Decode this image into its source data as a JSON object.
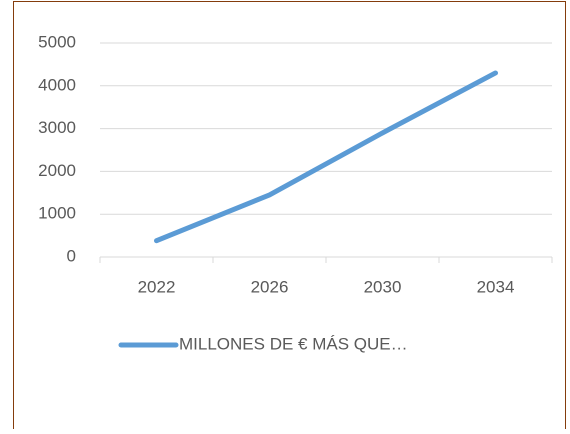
{
  "chart_data": {
    "type": "line",
    "categories": [
      "2022",
      "2026",
      "2030",
      "2034"
    ],
    "series": [
      {
        "name": "MILLONES DE € MÁS QUE…",
        "color": "#5b9bd5",
        "values": [
          380,
          1450,
          2900,
          4300
        ]
      }
    ],
    "ylim": [
      0,
      5000
    ],
    "yticks": [
      0,
      1000,
      2000,
      3000,
      4000,
      5000
    ],
    "grid": true,
    "legend": "bottom"
  }
}
